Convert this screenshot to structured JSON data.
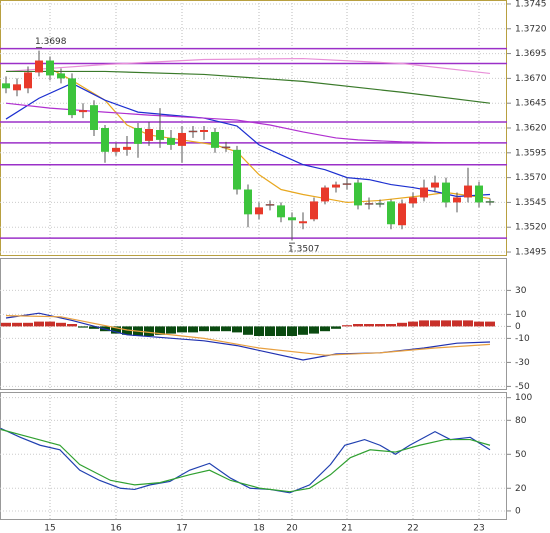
{
  "chart_data": [
    {
      "type": "candlestick",
      "ylim": [
        1.3491,
        1.3749
      ],
      "yticks": [
        1.3745,
        {
          "value": 1.372,
          "label": "1.3720"
        },
        1.3695,
        {
          "value": 1.367,
          "label": "1.3670"
        },
        1.3645,
        {
          "value": 1.362,
          "label": "1.3620"
        },
        1.3595,
        {
          "value": 1.357,
          "label": "1.3570"
        },
        1.3545,
        {
          "value": 1.352,
          "label": "1.3520"
        },
        1.3495
      ],
      "grid": true,
      "up_color": "#e8392a",
      "down_color": "#3cc43c",
      "open": [
        1.3665,
        1.3658,
        1.366,
        1.3676,
        1.3688,
        1.3675,
        1.367,
        1.3636,
        1.3643,
        1.362,
        1.3596,
        1.3598,
        1.362,
        1.3607,
        1.3618,
        1.361,
        1.3602,
        1.3616,
        1.3616,
        1.3616,
        1.3601,
        1.3598,
        1.3558,
        1.3533,
        1.3542,
        1.3542,
        1.353,
        1.3524,
        1.3528,
        1.3546,
        1.356,
        1.3563,
        1.3565,
        1.3543,
        1.3544,
        1.3546,
        1.3522,
        1.3544,
        1.355,
        1.356,
        1.3565,
        1.3545,
        1.355,
        1.3562,
        1.3546
      ],
      "high": [
        1.3672,
        1.367,
        1.3682,
        1.3698,
        1.3692,
        1.368,
        1.3675,
        1.3645,
        1.3648,
        1.3623,
        1.3605,
        1.3612,
        1.3625,
        1.3626,
        1.364,
        1.3618,
        1.3622,
        1.3622,
        1.3622,
        1.362,
        1.3606,
        1.3602,
        1.3563,
        1.3545,
        1.3547,
        1.3545,
        1.3535,
        1.3535,
        1.355,
        1.3562,
        1.3566,
        1.357,
        1.3568,
        1.355,
        1.3548,
        1.3548,
        1.3548,
        1.3555,
        1.3568,
        1.3572,
        1.357,
        1.3555,
        1.358,
        1.3566,
        1.3549
      ],
      "low": [
        1.3655,
        1.3652,
        1.3655,
        1.3672,
        1.3668,
        1.3665,
        1.363,
        1.363,
        1.3612,
        1.3585,
        1.3592,
        1.3592,
        1.359,
        1.3602,
        1.36,
        1.3598,
        1.3585,
        1.361,
        1.3608,
        1.3595,
        1.3596,
        1.3553,
        1.352,
        1.3528,
        1.3537,
        1.3525,
        1.3507,
        1.3518,
        1.3526,
        1.3543,
        1.3555,
        1.3558,
        1.3538,
        1.3538,
        1.354,
        1.3518,
        1.3518,
        1.354,
        1.3546,
        1.3555,
        1.354,
        1.3535,
        1.3545,
        1.354,
        1.3542
      ],
      "close": [
        1.366,
        1.3664,
        1.3676,
        1.3688,
        1.3673,
        1.367,
        1.3633,
        1.3638,
        1.3618,
        1.3596,
        1.36,
        1.3601,
        1.3604,
        1.3619,
        1.3608,
        1.3603,
        1.3615,
        1.3617,
        1.3618,
        1.36,
        1.3601,
        1.3558,
        1.3533,
        1.354,
        1.3543,
        1.353,
        1.3527,
        1.3526,
        1.3546,
        1.356,
        1.3563,
        1.3564,
        1.3542,
        1.3544,
        1.3543,
        1.3523,
        1.3544,
        1.355,
        1.356,
        1.3565,
        1.3545,
        1.355,
        1.3562,
        1.3545,
        1.3545
      ],
      "hlines": [
        1.37,
        1.3685,
        1.3626,
        1.3605,
        1.3583,
        1.3509
      ],
      "hline_color": "#9b30c8",
      "series": [
        {
          "color": "#e8a820",
          "x": [
            4,
            6,
            9,
            11,
            13,
            16,
            19,
            21,
            23,
            25,
            27,
            29,
            31,
            34,
            38,
            40,
            42,
            44
          ],
          "values": [
            1.368,
            1.3668,
            1.3648,
            1.3623,
            1.3613,
            1.3608,
            1.3603,
            1.3596,
            1.3573,
            1.3558,
            1.3553,
            1.3549,
            1.3545,
            1.3547,
            1.3552,
            1.3555,
            1.3552,
            1.3549
          ]
        },
        {
          "color": "#1c2fd0",
          "x": [
            0,
            3,
            6,
            9,
            12,
            15,
            18,
            21,
            23,
            25,
            27,
            29,
            31,
            33,
            35,
            37,
            39,
            41,
            44
          ],
          "values": [
            1.3629,
            1.365,
            1.3665,
            1.3648,
            1.3636,
            1.3633,
            1.363,
            1.3622,
            1.3603,
            1.3593,
            1.3583,
            1.3578,
            1.357,
            1.3568,
            1.3563,
            1.356,
            1.3556,
            1.3551,
            1.3553
          ]
        },
        {
          "color": "#b030d0",
          "x": [
            0,
            4,
            9,
            13,
            18,
            21,
            24,
            27,
            30,
            32,
            36,
            40,
            44
          ],
          "values": [
            1.3645,
            1.364,
            1.3636,
            1.3633,
            1.363,
            1.3628,
            1.3623,
            1.3616,
            1.361,
            1.3608,
            1.3606,
            1.3605,
            1.3605
          ]
        },
        {
          "color": "#e890d8",
          "x": [
            0,
            9,
            18,
            27,
            36,
            44
          ],
          "values": [
            1.3677,
            1.3684,
            1.3689,
            1.369,
            1.3685,
            1.3675
          ]
        },
        {
          "color": "#3a7a2a",
          "x": [
            0,
            9,
            18,
            27,
            36,
            44
          ],
          "values": [
            1.3677,
            1.3677,
            1.3674,
            1.3667,
            1.3656,
            1.3645
          ]
        }
      ],
      "annotations": [
        {
          "x": 3,
          "y": 1.3698,
          "label": "1.3698"
        },
        {
          "x": 26,
          "y": 1.3507,
          "label": "1.3507"
        }
      ]
    },
    {
      "type": "macd",
      "ylim": [
        -53,
        57
      ],
      "yticks": [
        30,
        10,
        0,
        -10,
        -30,
        -50
      ],
      "grid": true,
      "positive_color": "#c8302a",
      "negative_color": "#0a4a10",
      "values": [
        3,
        3,
        3,
        4,
        4,
        3,
        2,
        -1,
        -2,
        -4,
        -6,
        -7,
        -8,
        -8,
        -7,
        -6,
        -5,
        -5,
        -4,
        -4,
        -4,
        -5,
        -7,
        -8,
        -8,
        -8,
        -8,
        -7,
        -6,
        -4,
        -2,
        1,
        2,
        2,
        2,
        2,
        3,
        4,
        5,
        5,
        5,
        5,
        5,
        4,
        4
      ],
      "series": [
        {
          "color": "#2030b0",
          "x": [
            0,
            3,
            6,
            11,
            18,
            21,
            27,
            30,
            34,
            38,
            41,
            44
          ],
          "values": [
            7,
            11,
            5,
            -7,
            -12,
            -16,
            -28,
            -23,
            -22,
            -18,
            -14,
            -13
          ]
        },
        {
          "color": "#e8a040",
          "x": [
            0,
            5,
            11,
            18,
            23,
            29,
            34,
            39,
            44
          ],
          "values": [
            9,
            8,
            -3,
            -10,
            -18,
            -24,
            -22,
            -18,
            -15
          ]
        }
      ]
    },
    {
      "type": "line",
      "ylim": [
        -8,
        105
      ],
      "yticks": [
        100,
        80,
        50,
        20,
        0
      ],
      "grid": true,
      "categories": [
        null,
        null,
        null,
        null,
        "15",
        null,
        null,
        null,
        null,
        null,
        "16",
        null,
        null,
        null,
        null,
        null,
        "17",
        null,
        null,
        null,
        null,
        null,
        null,
        "18",
        null,
        null,
        "20",
        null,
        null,
        null,
        null,
        "21",
        null,
        null,
        null,
        null,
        null,
        "22",
        null,
        null,
        null,
        null,
        null,
        "23",
        null
      ],
      "series": [
        {
          "color": "#2040b0",
          "x": [
            -0.5,
            1.3,
            3.1,
            4.9,
            6.7,
            8.5,
            10.4,
            11.7,
            13.1,
            14.9,
            16.7,
            18.5,
            20.4,
            22.2,
            24,
            25.8,
            27.6,
            29.5,
            30.8,
            32.6,
            34,
            35.4,
            36.7,
            39,
            40.4,
            42.2,
            44
          ],
          "values": [
            73,
            65,
            58,
            54,
            36,
            27,
            20,
            19,
            23,
            26,
            36,
            42,
            29,
            20,
            19,
            16,
            23,
            41,
            58,
            63,
            58,
            50,
            58,
            70,
            63,
            65,
            54
          ]
        },
        {
          "color": "#30a030",
          "x": [
            -0.5,
            2.2,
            4.9,
            6.7,
            9.5,
            11.7,
            14,
            16.7,
            18.5,
            20.4,
            23.1,
            25.8,
            27.6,
            29.5,
            31.3,
            33.1,
            35.4,
            37.6,
            39.9,
            42.2,
            44
          ],
          "values": [
            72,
            65,
            58,
            41,
            27,
            23,
            25,
            32,
            36,
            27,
            20,
            17,
            20,
            32,
            47,
            54,
            52,
            58,
            63,
            63,
            58
          ]
        }
      ]
    }
  ]
}
